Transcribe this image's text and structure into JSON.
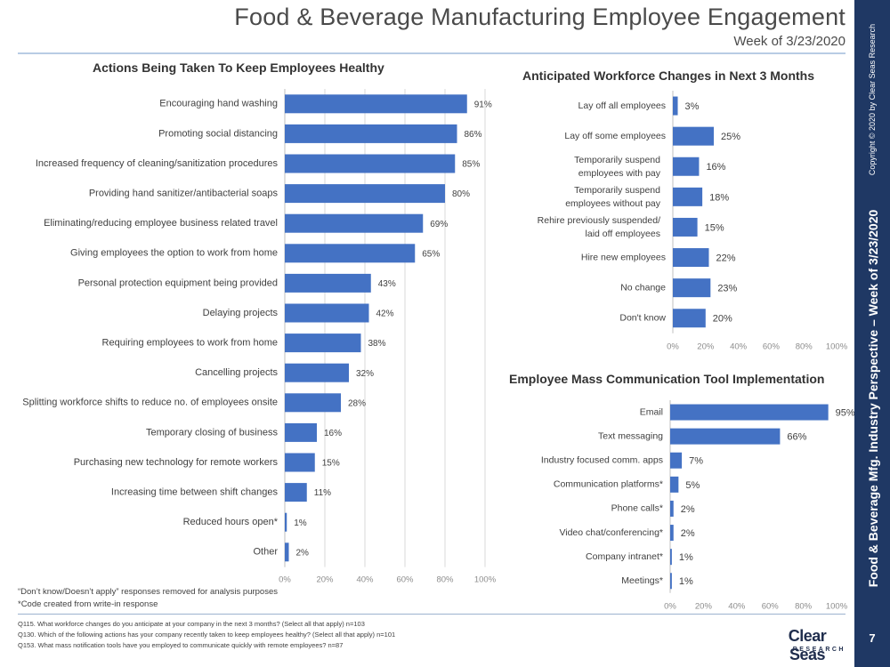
{
  "header": {
    "title": "Food & Beverage Manufacturing Employee Engagement",
    "subtitle": "Week of 3/23/2020"
  },
  "sidebar": {
    "copyright": "Copyright © 2020 by Clear Seas Research",
    "title": "Food & Beverage Mfg.  Industry Perspective – Week of 3/23/2020",
    "page_number": "7"
  },
  "colors": {
    "bar": "#4472c4",
    "sidebar": "#1f3864",
    "rule": "#b8cce4",
    "grid": "#d9d9d9"
  },
  "chart_data": [
    {
      "type": "bar",
      "orientation": "horizontal",
      "title": "Actions Being Taken To Keep Employees Healthy",
      "categories": [
        "Encouraging hand washing",
        "Promoting social distancing",
        "Increased frequency of cleaning/sanitization procedures",
        "Providing hand sanitizer/antibacterial soaps",
        "Eliminating/reducing employee business related travel",
        "Giving employees the option to work from home",
        "Personal protection equipment being provided",
        "Delaying projects",
        "Requiring employees to work from home",
        "Cancelling projects",
        "Splitting workforce shifts to reduce no. of employees onsite",
        "Temporary closing of business",
        "Purchasing new technology for remote workers",
        "Increasing time between shift changes",
        "Reduced hours open*",
        "Other"
      ],
      "values": [
        91,
        86,
        85,
        80,
        69,
        65,
        43,
        42,
        38,
        32,
        28,
        16,
        15,
        11,
        1,
        2
      ],
      "value_labels": [
        "91%",
        "86%",
        "85%",
        "80%",
        "69%",
        "65%",
        "43%",
        "42%",
        "38%",
        "32%",
        "28%",
        "16%",
        "15%",
        "11%",
        "1%",
        "2%"
      ],
      "xlim": [
        0,
        100
      ],
      "xticks": [
        "0%",
        "20%",
        "40%",
        "60%",
        "80%",
        "100%"
      ],
      "grid": true
    },
    {
      "type": "bar",
      "orientation": "horizontal",
      "title": "Anticipated Workforce Changes in Next 3 Months",
      "categories": [
        [
          "Lay off all employees"
        ],
        [
          "Lay off some employees"
        ],
        [
          "Temporarily suspend",
          "employees with pay"
        ],
        [
          "Temporarily suspend",
          "employees without pay"
        ],
        [
          "Rehire previously suspended/",
          "laid off employees"
        ],
        [
          "Hire new employees"
        ],
        [
          "No change"
        ],
        [
          "Don't know"
        ]
      ],
      "values": [
        3,
        25,
        16,
        18,
        15,
        22,
        23,
        20
      ],
      "value_labels": [
        "3%",
        "25%",
        "16%",
        "18%",
        "15%",
        "22%",
        "23%",
        "20%"
      ],
      "xlim": [
        0,
        100
      ],
      "xticks": [
        "0%",
        "20%",
        "40%",
        "60%",
        "80%",
        "100%"
      ],
      "grid": false
    },
    {
      "type": "bar",
      "orientation": "horizontal",
      "title": "Employee Mass Communication Tool Implementation",
      "categories": [
        "Email",
        "Text messaging",
        "Industry focused comm. apps",
        "Communication platforms*",
        "Phone calls*",
        "Video chat/conferencing*",
        "Company intranet*",
        "Meetings*"
      ],
      "values": [
        95,
        66,
        7,
        5,
        2,
        2,
        1,
        1
      ],
      "value_labels": [
        "95%",
        "66%",
        "7%",
        "5%",
        "2%",
        "2%",
        "1%",
        "1%"
      ],
      "xlim": [
        0,
        100
      ],
      "xticks": [
        "0%",
        "20%",
        "40%",
        "60%",
        "80%",
        "100%"
      ],
      "grid": false
    }
  ],
  "notes": [
    "“Don’t know/Doesn’t apply” responses removed for analysis purposes",
    "*Code created from write-in response"
  ],
  "footnotes": [
    "Q115. What workforce changes do you anticipate at your company in the next 3 months? (Select all that apply) n=103",
    "Q130. Which of the following actions has your company recently taken to keep employees healthy? (Select all that apply) n=101",
    "Q153. What mass notification tools have you employed to communicate quickly with remote employees? n=87"
  ],
  "logo": {
    "name": "Clear Seas",
    "sub": "RESEARCH"
  }
}
